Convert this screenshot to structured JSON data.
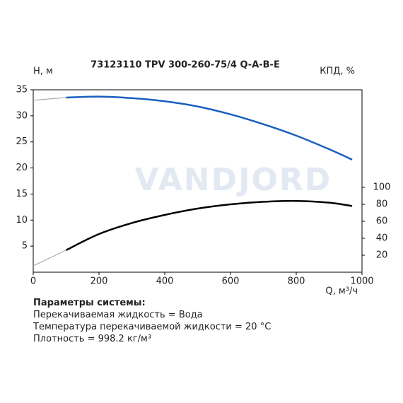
{
  "chart_data": {
    "type": "line",
    "title": "73123110 TPV 300-260-75/4 Q-A-B-E",
    "watermark": "VANDJORD",
    "y_label": "Н, м",
    "y2_label": "КПД, %",
    "x_label": "Q, м³/ч",
    "x": [
      0,
      100,
      200,
      300,
      400,
      500,
      600,
      700,
      800,
      900,
      970
    ],
    "series": [
      {
        "name": "Н",
        "color": "#1a5fc0",
        "values": [
          33.0,
          33.5,
          33.7,
          33.4,
          32.8,
          31.8,
          30.3,
          28.4,
          26.2,
          23.6,
          21.6
        ]
      },
      {
        "name": "КПД",
        "color": "#000000",
        "axis": "y2",
        "values": [
          7.5,
          26,
          45,
          58,
          67.5,
          75,
          80,
          83,
          84,
          82,
          78
        ]
      }
    ],
    "extrapolated_color": "#9aa0a8",
    "xlim": [
      0,
      1000
    ],
    "xticks": [
      0,
      200,
      400,
      600,
      800,
      1000
    ],
    "ylim": [
      0,
      35
    ],
    "yticks": [
      5,
      10,
      15,
      20,
      25,
      30,
      35
    ],
    "y2lim": [
      0,
      215
    ],
    "y2ticks": [
      20,
      40,
      60,
      80,
      100
    ],
    "grid": false
  },
  "notes": {
    "heading": "Параметры системы:",
    "lines": [
      "Перекачиваемая жидкость = Вода",
      "Температура перекачиваемой жидкости = 20 °C",
      "Плотность = 998.2 кг/м³"
    ]
  }
}
